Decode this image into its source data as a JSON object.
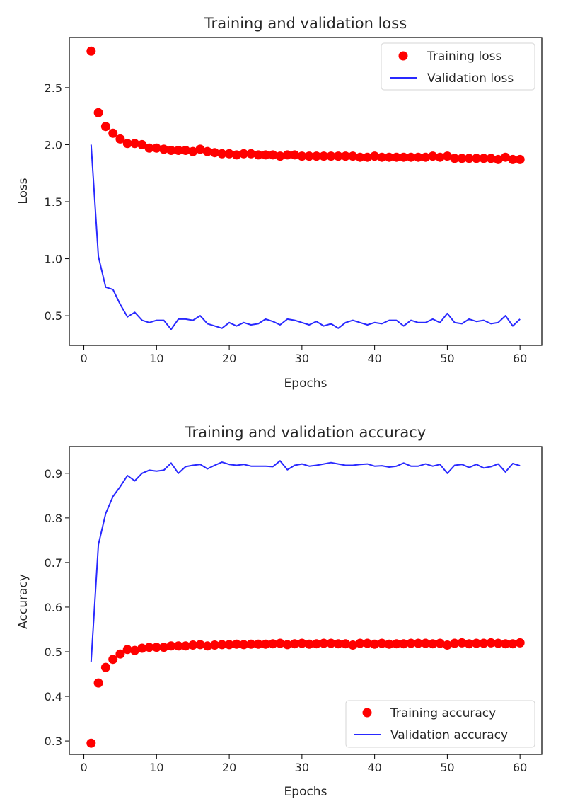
{
  "chart_data": [
    {
      "type": "line",
      "title": "Training and validation loss",
      "xlabel": "Epochs",
      "ylabel": "Loss",
      "xlim": [
        -2,
        63
      ],
      "ylim": [
        0.24,
        2.94
      ],
      "xticks": [
        0,
        10,
        20,
        30,
        40,
        50,
        60
      ],
      "yticks": [
        0.5,
        1.0,
        1.5,
        2.0,
        2.5
      ],
      "ytick_labels": [
        "0.5",
        "1.0",
        "1.5",
        "2.0",
        "2.5"
      ],
      "grid": false,
      "legend_position": "top-right",
      "x": [
        1,
        2,
        3,
        4,
        5,
        6,
        7,
        8,
        9,
        10,
        11,
        12,
        13,
        14,
        15,
        16,
        17,
        18,
        19,
        20,
        21,
        22,
        23,
        24,
        25,
        26,
        27,
        28,
        29,
        30,
        31,
        32,
        33,
        34,
        35,
        36,
        37,
        38,
        39,
        40,
        41,
        42,
        43,
        44,
        45,
        46,
        47,
        48,
        49,
        50,
        51,
        52,
        53,
        54,
        55,
        56,
        57,
        58,
        59,
        60
      ],
      "series": [
        {
          "name": "Training loss",
          "style": "dots",
          "color": "#ff0000",
          "values": [
            2.82,
            2.28,
            2.16,
            2.1,
            2.05,
            2.01,
            2.01,
            2.0,
            1.97,
            1.97,
            1.96,
            1.95,
            1.95,
            1.95,
            1.94,
            1.96,
            1.94,
            1.93,
            1.92,
            1.92,
            1.91,
            1.92,
            1.92,
            1.91,
            1.91,
            1.91,
            1.9,
            1.91,
            1.91,
            1.9,
            1.9,
            1.9,
            1.9,
            1.9,
            1.9,
            1.9,
            1.9,
            1.89,
            1.89,
            1.9,
            1.89,
            1.89,
            1.89,
            1.89,
            1.89,
            1.89,
            1.89,
            1.9,
            1.89,
            1.9,
            1.88,
            1.88,
            1.88,
            1.88,
            1.88,
            1.88,
            1.87,
            1.89,
            1.87,
            1.87
          ]
        },
        {
          "name": "Validation loss",
          "style": "line",
          "color": "#2929ff",
          "values": [
            2.0,
            1.02,
            0.75,
            0.73,
            0.6,
            0.49,
            0.53,
            0.46,
            0.44,
            0.46,
            0.46,
            0.38,
            0.47,
            0.47,
            0.46,
            0.5,
            0.43,
            0.41,
            0.39,
            0.44,
            0.41,
            0.44,
            0.42,
            0.43,
            0.47,
            0.45,
            0.42,
            0.47,
            0.46,
            0.44,
            0.42,
            0.45,
            0.41,
            0.43,
            0.39,
            0.44,
            0.46,
            0.44,
            0.42,
            0.44,
            0.43,
            0.46,
            0.46,
            0.41,
            0.46,
            0.44,
            0.44,
            0.47,
            0.44,
            0.52,
            0.44,
            0.43,
            0.47,
            0.45,
            0.46,
            0.43,
            0.44,
            0.5,
            0.41,
            0.47
          ]
        }
      ]
    },
    {
      "type": "line",
      "title": "Training and validation accuracy",
      "xlabel": "Epochs",
      "ylabel": "Accuracy",
      "xlim": [
        -2,
        63
      ],
      "ylim": [
        0.27,
        0.96
      ],
      "xticks": [
        0,
        10,
        20,
        30,
        40,
        50,
        60
      ],
      "yticks": [
        0.3,
        0.4,
        0.5,
        0.6,
        0.7,
        0.8,
        0.9
      ],
      "ytick_labels": [
        "0.3",
        "0.4",
        "0.5",
        "0.6",
        "0.7",
        "0.8",
        "0.9"
      ],
      "grid": false,
      "legend_position": "bottom-right",
      "x": [
        1,
        2,
        3,
        4,
        5,
        6,
        7,
        8,
        9,
        10,
        11,
        12,
        13,
        14,
        15,
        16,
        17,
        18,
        19,
        20,
        21,
        22,
        23,
        24,
        25,
        26,
        27,
        28,
        29,
        30,
        31,
        32,
        33,
        34,
        35,
        36,
        37,
        38,
        39,
        40,
        41,
        42,
        43,
        44,
        45,
        46,
        47,
        48,
        49,
        50,
        51,
        52,
        53,
        54,
        55,
        56,
        57,
        58,
        59,
        60
      ],
      "series": [
        {
          "name": "Training accuracy",
          "style": "dots",
          "color": "#ff0000",
          "values": [
            0.295,
            0.43,
            0.465,
            0.483,
            0.495,
            0.505,
            0.503,
            0.508,
            0.51,
            0.51,
            0.51,
            0.513,
            0.513,
            0.513,
            0.515,
            0.516,
            0.513,
            0.515,
            0.516,
            0.516,
            0.517,
            0.516,
            0.517,
            0.517,
            0.517,
            0.518,
            0.519,
            0.516,
            0.518,
            0.519,
            0.517,
            0.518,
            0.519,
            0.519,
            0.518,
            0.518,
            0.515,
            0.519,
            0.519,
            0.517,
            0.519,
            0.517,
            0.518,
            0.518,
            0.519,
            0.519,
            0.519,
            0.518,
            0.519,
            0.515,
            0.519,
            0.52,
            0.518,
            0.519,
            0.519,
            0.52,
            0.519,
            0.518,
            0.518,
            0.52
          ]
        },
        {
          "name": "Validation accuracy",
          "style": "line",
          "color": "#2929ff",
          "values": [
            0.478,
            0.74,
            0.81,
            0.848,
            0.87,
            0.895,
            0.883,
            0.9,
            0.907,
            0.905,
            0.907,
            0.923,
            0.9,
            0.915,
            0.918,
            0.92,
            0.91,
            0.918,
            0.925,
            0.92,
            0.918,
            0.92,
            0.916,
            0.916,
            0.916,
            0.915,
            0.928,
            0.908,
            0.918,
            0.921,
            0.916,
            0.918,
            0.921,
            0.924,
            0.921,
            0.918,
            0.918,
            0.92,
            0.921,
            0.916,
            0.917,
            0.914,
            0.916,
            0.923,
            0.916,
            0.916,
            0.921,
            0.916,
            0.92,
            0.9,
            0.918,
            0.92,
            0.913,
            0.92,
            0.912,
            0.915,
            0.921,
            0.903,
            0.922,
            0.917
          ]
        }
      ]
    }
  ]
}
